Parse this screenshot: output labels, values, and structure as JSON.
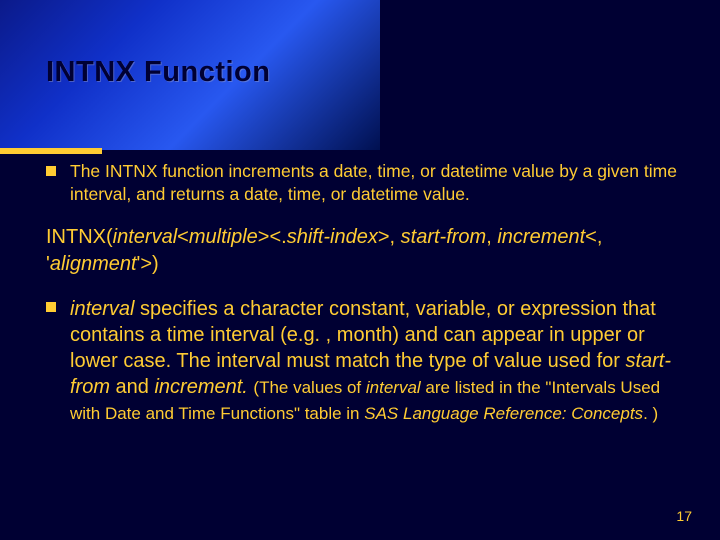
{
  "slide": {
    "title": "INTNX Function",
    "bullet1": "The INTNX function increments a date, time, or datetime value by a given time interval, and returns a date, time, or datetime value.",
    "syntax_prefix": "INTNX(",
    "syntax_interval": "interval",
    "syntax_multiple_open": "<",
    "syntax_multiple": "multiple",
    "syntax_multiple_close": ">",
    "syntax_shift_open": "<.",
    "syntax_shift": "shift-index",
    "syntax_shift_close": ">, ",
    "syntax_startfrom": "start-from",
    "syntax_comma": ", ",
    "syntax_increment": "increment",
    "syntax_align_open": "<, '",
    "syntax_align": "alignment",
    "syntax_align_close": "'>)",
    "bullet2_interval": "interval",
    "bullet2_text1": " specifies a character constant, variable, or expression that contains a time interval (e.g. , month) and can appear in upper or lower case. The interval must match the type of value used for ",
    "bullet2_startfrom": "start-from",
    "bullet2_and": " and ",
    "bullet2_increment": "increment. ",
    "bullet2_note_open": "(The values of ",
    "bullet2_note_interval": "interval",
    "bullet2_note_mid": " are listed in the \"Intervals Used with Date and Time Functions\" table in ",
    "bullet2_note_ref": "SAS Language Reference: Concepts",
    "bullet2_note_close": ". )",
    "page_number": "17"
  },
  "colors": {
    "background": "#000033",
    "accent": "#ffcc33",
    "header_gradient_start": "#0b1a8a",
    "header_gradient_end": "#001050"
  }
}
